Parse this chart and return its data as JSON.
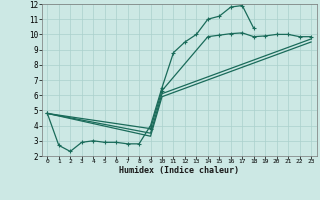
{
  "title": "",
  "xlabel": "Humidex (Indice chaleur)",
  "bg_color": "#cce8e4",
  "grid_color": "#aad0cc",
  "line_color": "#1a6b5a",
  "xlim": [
    -0.5,
    23.5
  ],
  "ylim": [
    2,
    12
  ],
  "xticks": [
    0,
    1,
    2,
    3,
    4,
    5,
    6,
    7,
    8,
    9,
    10,
    11,
    12,
    13,
    14,
    15,
    16,
    17,
    18,
    19,
    20,
    21,
    22,
    23
  ],
  "yticks": [
    2,
    3,
    4,
    5,
    6,
    7,
    8,
    9,
    10,
    11,
    12
  ],
  "line1_x": [
    0,
    1,
    2,
    3,
    4,
    5,
    6,
    7,
    8,
    9,
    10,
    11,
    12,
    13,
    14,
    15,
    16,
    17,
    18
  ],
  "line1_y": [
    4.8,
    2.7,
    2.3,
    2.9,
    3.0,
    2.9,
    2.9,
    2.8,
    2.8,
    4.0,
    6.5,
    8.8,
    9.5,
    10.0,
    11.0,
    11.2,
    11.8,
    11.9,
    10.4
  ],
  "line2_x": [
    0,
    9,
    10,
    14,
    15,
    16,
    17,
    18,
    19,
    20,
    21,
    22,
    23
  ],
  "line2_y": [
    4.8,
    3.8,
    6.3,
    9.85,
    9.95,
    10.05,
    10.1,
    9.85,
    9.9,
    10.0,
    10.0,
    9.85,
    9.85
  ],
  "line3_x": [
    0,
    9,
    10,
    23
  ],
  "line3_y": [
    4.8,
    3.5,
    6.1,
    9.7
  ],
  "line4_x": [
    0,
    9,
    10,
    23
  ],
  "line4_y": [
    4.8,
    3.3,
    5.9,
    9.5
  ]
}
